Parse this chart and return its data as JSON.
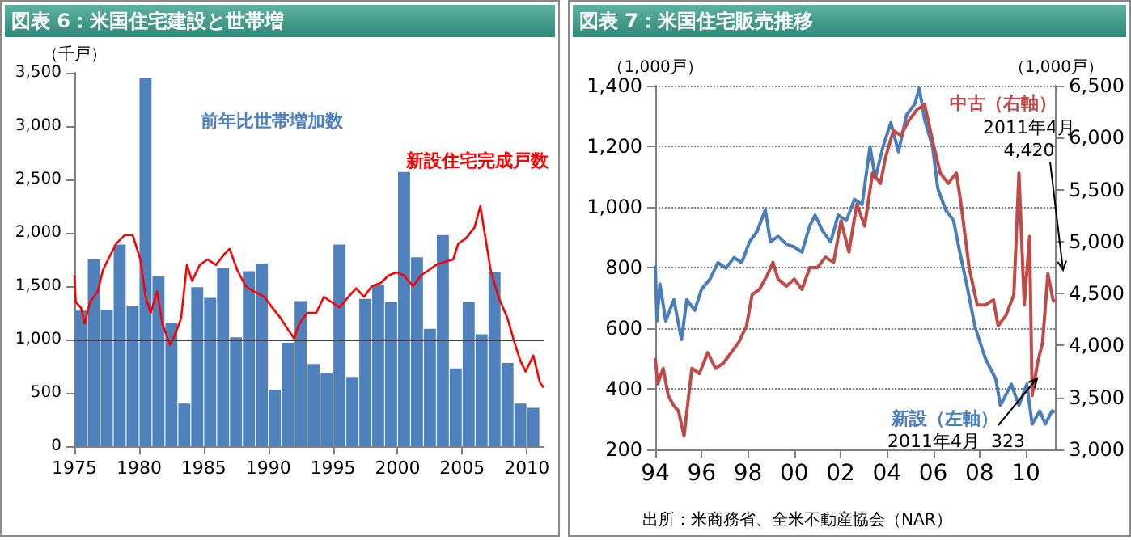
{
  "chart_data": [
    {
      "type": "bar",
      "title": "図表 6：米国住宅建設と世帯増",
      "ylabel": "（千戸）",
      "xlim": [
        1975,
        2011.3
      ],
      "xticks": [
        1975,
        1980,
        1985,
        1990,
        1995,
        2000,
        2005,
        2010
      ],
      "ylim": [
        0,
        3500
      ],
      "yticks": [
        0,
        500,
        {
          "value": 1000,
          "label": "1,000"
        },
        {
          "value": 1500,
          "label": "1,500"
        },
        {
          "value": 2000,
          "label": "2,000"
        },
        {
          "value": 2500,
          "label": "2,500"
        },
        {
          "value": 3000,
          "label": "3,000"
        },
        {
          "value": 3500,
          "label": "3,500"
        }
      ],
      "grid": false,
      "legend": false,
      "ref_lines": [
        {
          "axis": "y",
          "value": 1000,
          "color": "#404040"
        }
      ],
      "series": [
        {
          "type": "bar",
          "name": "前年比世帯増加数",
          "color": "#4f81bd",
          "x": [
            1975.5,
            1976.5,
            1977.5,
            1978.5,
            1979.5,
            1980.5,
            1981.5,
            1982.5,
            1983.5,
            1984.5,
            1985.5,
            1986.5,
            1987.5,
            1988.5,
            1989.5,
            1990.5,
            1991.5,
            1992.5,
            1993.5,
            1994.5,
            1995.5,
            1996.5,
            1997.5,
            1998.5,
            1999.5,
            2000.5,
            2001.5,
            2002.5,
            2003.5,
            2004.5,
            2005.5,
            2006.5,
            2007.5,
            2008.5,
            2009.5,
            2010.5
          ],
          "values": [
            1270,
            1750,
            1280,
            1890,
            1310,
            3450,
            1590,
            1160,
            400,
            1490,
            1390,
            1670,
            1020,
            1640,
            1710,
            530,
            970,
            1360,
            770,
            690,
            1890,
            650,
            1380,
            1510,
            1350,
            2570,
            1770,
            1100,
            1980,
            730,
            1350,
            1050,
            1630,
            780,
            400,
            360
          ]
        },
        {
          "type": "line",
          "name": "新設住宅完成戸数",
          "color": "#ff0000",
          "x": [
            1975.0,
            1975.1,
            1975.5,
            1975.8,
            1976.2,
            1976.8,
            1977.2,
            1977.6,
            1978.25,
            1978.9,
            1979.5,
            1980.1,
            1980.5,
            1980.9,
            1981.4,
            1981.8,
            1982.4,
            1982.8,
            1983.25,
            1983.7,
            1984.1,
            1984.7,
            1985.3,
            1985.95,
            1986.6,
            1987.0,
            1987.6,
            1988.25,
            1988.9,
            1989.7,
            1990.3,
            1990.95,
            1991.6,
            1992.0,
            1992.4,
            1993.0,
            1993.7,
            1994.3,
            1994.9,
            1995.5,
            1996.2,
            1996.8,
            1997.4,
            1998.0,
            1998.7,
            1999.3,
            1999.9,
            2000.5,
            2001.2,
            2001.8,
            2002.4,
            2003.0,
            2003.7,
            2004.3,
            2004.7,
            2005.3,
            2005.95,
            2006.4,
            2006.8,
            2007.2,
            2007.8,
            2008.5,
            2009.1,
            2009.5,
            2009.9,
            2010.5,
            2011.0,
            2011.3
          ],
          "values": [
            1600,
            1350,
            1300,
            1150,
            1350,
            1450,
            1650,
            1750,
            1900,
            1980,
            1980,
            1750,
            1400,
            1250,
            1450,
            1150,
            950,
            1050,
            1200,
            1700,
            1550,
            1700,
            1750,
            1700,
            1800,
            1850,
            1650,
            1500,
            1450,
            1400,
            1300,
            1200,
            1080,
            1010,
            1150,
            1250,
            1250,
            1400,
            1350,
            1300,
            1400,
            1480,
            1400,
            1500,
            1530,
            1600,
            1630,
            1600,
            1500,
            1600,
            1650,
            1700,
            1730,
            1750,
            1900,
            1950,
            2050,
            2250,
            1950,
            1650,
            1400,
            1200,
            950,
            800,
            700,
            850,
            600,
            550
          ]
        }
      ]
    },
    {
      "type": "line",
      "title": "図表 7：米国住宅販売推移",
      "ylabel": "（1,000戸）",
      "y2label": "（1,000戸）",
      "xlim": [
        1994,
        2011.3
      ],
      "xticks": [
        {
          "value": 1994,
          "label": "94"
        },
        {
          "value": 1996,
          "label": "96"
        },
        {
          "value": 1998,
          "label": "98"
        },
        {
          "value": 2000,
          "label": "00"
        },
        {
          "value": 2002,
          "label": "02"
        },
        {
          "value": 2004,
          "label": "04"
        },
        {
          "value": 2006,
          "label": "06"
        },
        {
          "value": 2008,
          "label": "08"
        },
        {
          "value": 2010,
          "label": "10"
        }
      ],
      "ylim": [
        200,
        1400
      ],
      "yticks": [
        200,
        400,
        600,
        800,
        {
          "value": 1000,
          "label": "1,000"
        },
        {
          "value": 1200,
          "label": "1,200"
        },
        {
          "value": 1400,
          "label": "1,400"
        }
      ],
      "y2lim": [
        3000,
        6500
      ],
      "y2ticks": [
        {
          "value": 3000,
          "label": "3,000"
        },
        {
          "value": 3500,
          "label": "3,500"
        },
        {
          "value": 4000,
          "label": "4,000"
        },
        {
          "value": 4500,
          "label": "4,500"
        },
        {
          "value": 5000,
          "label": "5,000"
        },
        {
          "value": 5500,
          "label": "5,500"
        },
        {
          "value": 6000,
          "label": "6,000"
        },
        {
          "value": 6500,
          "label": "6,500"
        }
      ],
      "grid": "y",
      "legend": false,
      "annotations": [
        "2011年4月\n4,420",
        "2011年4月  323",
        "出所：米商務省、全米不動産協会（NAR）"
      ],
      "series": [
        {
          "name": "新設（左軸）",
          "color": "#4a7ebb",
          "x": [
            1994.0,
            1994.07,
            1994.2,
            1994.45,
            1994.8,
            1995.13,
            1995.36,
            1995.7,
            1996.0,
            1996.37,
            1996.7,
            1997.05,
            1997.4,
            1997.73,
            1998.07,
            1998.4,
            1998.75,
            1998.97,
            1999.3,
            1999.66,
            2000.0,
            2000.33,
            2000.67,
            2000.9,
            2001.23,
            2001.57,
            2001.9,
            2002.25,
            2002.6,
            2002.93,
            2003.27,
            2003.5,
            2003.83,
            2004.17,
            2004.5,
            2004.85,
            2005.2,
            2005.4,
            2005.63,
            2005.97,
            2006.2,
            2006.54,
            2006.88,
            2007.1,
            2007.44,
            2007.8,
            2008.24,
            2008.7,
            2008.9,
            2009.37,
            2009.7,
            2010.04,
            2010.27,
            2010.6,
            2010.84,
            2011.13,
            2011.25
          ],
          "values": [
            807,
            624,
            746,
            624,
            694,
            563,
            694,
            659,
            729,
            763,
            816,
            798,
            833,
            816,
            885,
            920,
            990,
            885,
            903,
            877,
            868,
            851,
            938,
            973,
            920,
            885,
            973,
            955,
            1025,
            1008,
            1199,
            1095,
            1199,
            1278,
            1182,
            1304,
            1339,
            1391,
            1287,
            1199,
            1060,
            990,
            955,
            868,
            746,
            606,
            502,
            432,
            345,
            415,
            345,
            415,
            284,
            327,
            284,
            327,
            323
          ]
        },
        {
          "name": "中古（右軸）",
          "axis": "y2",
          "color": "#be4b48",
          "x": [
            1994.0,
            1994.1,
            1994.34,
            1994.56,
            1994.8,
            1995.0,
            1995.24,
            1995.58,
            1995.9,
            1996.26,
            1996.6,
            1996.94,
            1997.27,
            1997.6,
            1997.94,
            1998.18,
            1998.5,
            1998.86,
            1999.08,
            1999.3,
            1999.66,
            2000.0,
            2000.33,
            2000.67,
            2001.0,
            2001.35,
            2001.7,
            2002.02,
            2002.36,
            2002.7,
            2003.04,
            2003.38,
            2003.72,
            2003.94,
            2004.28,
            2004.6,
            2004.96,
            2005.3,
            2005.63,
            2005.97,
            2006.3,
            2006.65,
            2007.0,
            2007.2,
            2007.55,
            2007.9,
            2008.24,
            2008.6,
            2008.8,
            2009.14,
            2009.48,
            2009.7,
            2009.93,
            2010.16,
            2010.27,
            2010.5,
            2010.72,
            2010.95,
            2011.17,
            2011.25
          ],
          "values": [
            3880,
            3630,
            3780,
            3520,
            3420,
            3370,
            3130,
            3780,
            3730,
            3930,
            3780,
            3830,
            3930,
            4030,
            4190,
            4490,
            4540,
            4690,
            4800,
            4640,
            4570,
            4640,
            4540,
            4750,
            4750,
            4850,
            4800,
            5200,
            4900,
            5360,
            5150,
            5660,
            5560,
            5810,
            6070,
            6020,
            6170,
            6270,
            6320,
            5970,
            5660,
            5560,
            5660,
            5360,
            4750,
            4390,
            4390,
            4440,
            4190,
            4290,
            4490,
            5660,
            4390,
            5050,
            3520,
            3830,
            4030,
            4690,
            4440,
            4420
          ]
        }
      ]
    }
  ]
}
